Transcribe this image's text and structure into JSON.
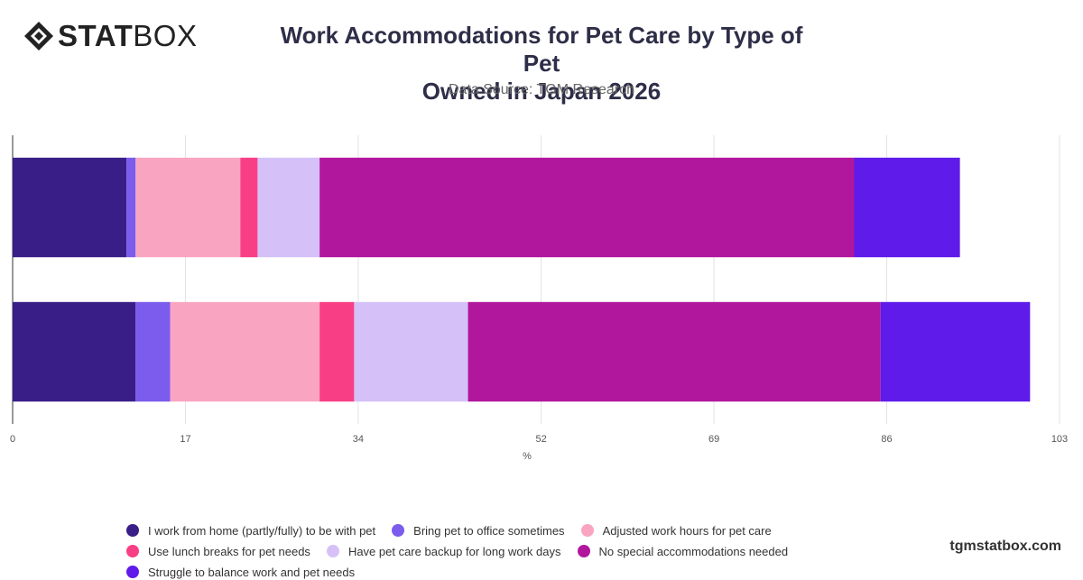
{
  "brand": {
    "logo_bold": "STAT",
    "logo_light": "BOX",
    "footer": "tgmstatbox.com"
  },
  "title_line1": "Work Accommodations for Pet Care by Type of Pet",
  "title_line2": "Owned in Japan 2026",
  "subtitle": "Data Source: TGM Research",
  "chart_data": {
    "type": "bar",
    "orientation": "horizontal",
    "stacked": true,
    "title": "Work Accommodations for Pet Care by Type of Pet Owned in Japan 2026",
    "subtitle": "Data Source: TGM Research",
    "xlabel": "%",
    "ylabel": "",
    "xlim": [
      0,
      103
    ],
    "xticks": [
      "0",
      "17",
      "34",
      "52",
      "69",
      "86",
      "103"
    ],
    "categories": [
      "",
      ""
    ],
    "grid": "vertical",
    "legend_position": "bottom",
    "series": [
      {
        "name": "I work from home (partly/fully) to be with pet",
        "color": "#3a1e87",
        "values": [
          11.2,
          12.1
        ]
      },
      {
        "name": "Bring pet to office sometimes",
        "color": "#7b5cec",
        "values": [
          0.9,
          3.4
        ]
      },
      {
        "name": "Adjusted work hours for pet care",
        "color": "#f9a5c1",
        "values": [
          10.3,
          14.7
        ]
      },
      {
        "name": "Use lunch breaks for pet needs",
        "color": "#f83f86",
        "values": [
          1.7,
          3.4
        ]
      },
      {
        "name": "Have pet care backup for long work days",
        "color": "#d5c1f8",
        "values": [
          6.1,
          11.2
        ]
      },
      {
        "name": "No special accommodations needed",
        "color": "#b1179d",
        "values": [
          52.6,
          40.6
        ]
      },
      {
        "name": "Struggle to balance work and pet needs",
        "color": "#5e1bea",
        "values": [
          10.4,
          14.7
        ]
      }
    ]
  }
}
